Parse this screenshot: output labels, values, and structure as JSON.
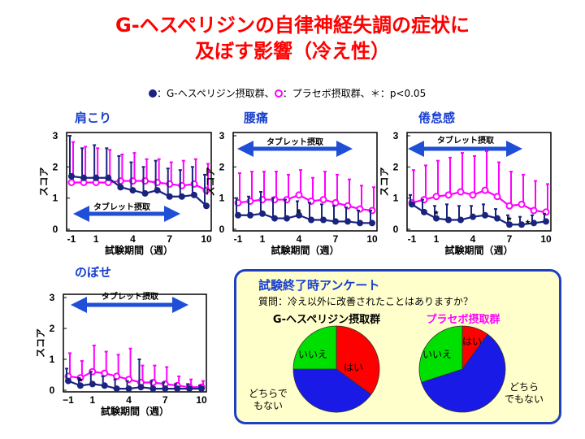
{
  "title_line1": "G-ヘスペリジンの自律神経失調の症状に",
  "title_line2": "及ぼす影響（冷え性）",
  "legend": {
    "hesperidin_label": "：G-ヘスペリジン摂取群、",
    "placebo_label": "：プラセボ摂取群、",
    "sig_label": "＊：p<0.05"
  },
  "colors": {
    "hesperidin": "#1a237e",
    "placebo": "#ff00ff",
    "panel_title": "#1a3fcf",
    "arrow": "#1f4fd6",
    "pie_yes": "#ff0000",
    "pie_no": "#00e000",
    "pie_neither": "#1a1ae6"
  },
  "chart_data": [
    {
      "type": "line",
      "title": "肩こり",
      "xlabel": "試験期間（週）",
      "ylabel": "スコア",
      "xlim": [
        -1,
        10
      ],
      "ylim": [
        0,
        3
      ],
      "xticks": [
        "-1",
        "1",
        "4",
        "7",
        "10"
      ],
      "yticks": [
        "0",
        "1",
        "2",
        "3"
      ],
      "x": [
        -1,
        0,
        1,
        2,
        3,
        4,
        5,
        6,
        7,
        8,
        9,
        10
      ],
      "series": [
        {
          "values": [
            1.7,
            1.65,
            1.65,
            1.65,
            1.35,
            1.25,
            1.15,
            1.25,
            1.05,
            1.05,
            1.1,
            0.75
          ],
          "upper": [
            3.0,
            2.6,
            2.7,
            2.6,
            2.35,
            2.15,
            2.0,
            2.2,
            1.95,
            1.9,
            2.0,
            1.75
          ]
        },
        {
          "values": [
            1.5,
            1.5,
            1.5,
            1.5,
            1.55,
            1.55,
            1.55,
            1.5,
            1.45,
            1.4,
            1.45,
            1.25
          ],
          "upper": [
            2.8,
            2.65,
            2.6,
            2.55,
            2.4,
            2.45,
            2.25,
            2.25,
            2.15,
            2.2,
            2.25,
            2.1
          ]
        }
      ],
      "arrow_label": "タブレット摂取",
      "sig_marks": []
    },
    {
      "type": "line",
      "title": "腰痛",
      "xlabel": "試験期間（週）",
      "ylabel": "スコア",
      "xlim": [
        -1,
        10
      ],
      "ylim": [
        0,
        3
      ],
      "xticks": [
        "-1",
        "1",
        "4",
        "7",
        "10"
      ],
      "yticks": [
        "0",
        "1",
        "2",
        "3"
      ],
      "x": [
        -1,
        0,
        1,
        2,
        3,
        4,
        5,
        6,
        7,
        8,
        9,
        10
      ],
      "series": [
        {
          "values": [
            0.45,
            0.45,
            0.5,
            0.35,
            0.35,
            0.45,
            0.3,
            0.3,
            0.25,
            0.25,
            0.2,
            0.2
          ],
          "upper": [
            1.0,
            1.05,
            1.2,
            1.0,
            0.95,
            0.9,
            0.85,
            0.8,
            0.75,
            0.7,
            0.6,
            0.6
          ]
        },
        {
          "values": [
            0.85,
            0.9,
            0.95,
            0.95,
            0.95,
            1.1,
            0.9,
            0.95,
            0.85,
            0.75,
            0.65,
            0.6
          ],
          "upper": [
            1.8,
            1.85,
            1.85,
            1.85,
            1.75,
            1.9,
            1.65,
            1.85,
            1.75,
            1.6,
            1.4,
            1.35
          ]
        }
      ],
      "arrow_label": "タブレット摂取",
      "sig_marks": [
        {
          "x": 4,
          "y": 0.55
        }
      ]
    },
    {
      "type": "line",
      "title": "倦怠感",
      "xlabel": "試験期間（週）",
      "ylabel": "スコア",
      "xlim": [
        -1,
        10
      ],
      "ylim": [
        0,
        3
      ],
      "xticks": [
        "-1",
        "1",
        "4",
        "7",
        "10"
      ],
      "yticks": [
        "0",
        "1",
        "2",
        "3"
      ],
      "x": [
        -1,
        0,
        1,
        2,
        3,
        4,
        5,
        6,
        7,
        8,
        9,
        10
      ],
      "series": [
        {
          "values": [
            0.8,
            0.55,
            0.35,
            0.3,
            0.3,
            0.4,
            0.45,
            0.35,
            0.15,
            0.15,
            0.2,
            0.25
          ],
          "upper": [
            1.1,
            0.95,
            0.75,
            0.8,
            0.75,
            0.75,
            0.8,
            0.65,
            0.45,
            0.4,
            0.45,
            0.5
          ]
        },
        {
          "values": [
            0.85,
            0.95,
            1.05,
            1.1,
            1.2,
            1.1,
            1.25,
            1.05,
            0.75,
            0.8,
            0.6,
            0.55
          ],
          "upper": [
            1.9,
            2.05,
            2.2,
            2.3,
            2.45,
            2.35,
            2.5,
            2.15,
            1.85,
            1.75,
            1.55,
            1.45
          ]
        }
      ],
      "arrow_label": "タブレット摂取",
      "sig_marks": [
        {
          "x": 1,
          "y": 0.5
        },
        {
          "x": 7,
          "y": 0.3
        },
        {
          "x": 8.5,
          "y": 0.2
        }
      ]
    },
    {
      "type": "line",
      "title": "のぼせ",
      "xlabel": "試験期間（週）",
      "ylabel": "スコア",
      "xlim": [
        -1,
        10
      ],
      "ylim": [
        0,
        3
      ],
      "xticks": [
        "−1",
        "1",
        "4",
        "7",
        "10"
      ],
      "yticks": [
        "0",
        "1",
        "2",
        "3"
      ],
      "x": [
        -1,
        0,
        1,
        2,
        3,
        4,
        5,
        6,
        7,
        8,
        9,
        10
      ],
      "series": [
        {
          "values": [
            0.3,
            0.15,
            0.2,
            0.15,
            0.05,
            0.05,
            0.1,
            0.05,
            0.05,
            0.05,
            0.05,
            0.05
          ],
          "upper": [
            0.7,
            0.4,
            0.6,
            0.45,
            0.35,
            0.3,
            1.0,
            0.3,
            0.25,
            0.2,
            0.2,
            0.15
          ]
        },
        {
          "values": [
            0.45,
            0.4,
            0.6,
            0.55,
            0.45,
            0.35,
            0.25,
            0.25,
            0.2,
            0.15,
            0.1,
            0.1
          ],
          "upper": [
            1.2,
            0.95,
            1.45,
            1.25,
            1.15,
            1.35,
            0.8,
            0.8,
            0.75,
            0.45,
            0.35,
            0.3
          ]
        }
      ],
      "arrow_label": "タブレット摂取",
      "sig_marks": [
        {
          "x": 0,
          "y": 0.3
        }
      ]
    },
    {
      "type": "pie",
      "title": "G-ヘスペリジン摂取群",
      "labels": [
        "はい",
        "どちらでもない",
        "いいえ"
      ],
      "values": [
        35,
        40,
        25
      ]
    },
    {
      "type": "pie",
      "title": "プラセボ摂取群",
      "labels": [
        "はい",
        "どちらでもない",
        "いいえ"
      ],
      "values": [
        10,
        60,
        30
      ]
    }
  ],
  "survey": {
    "title": "試験終了時アンケート",
    "question": "質問：冷え以外に改善されたことはありますか？",
    "pie_labels": {
      "yes": "はい",
      "no": "いいえ",
      "neither_line1": "どちらで",
      "neither_line2": "もない"
    },
    "pie2_neither_line1": "どちら",
    "pie2_neither_line2": "でもない"
  }
}
